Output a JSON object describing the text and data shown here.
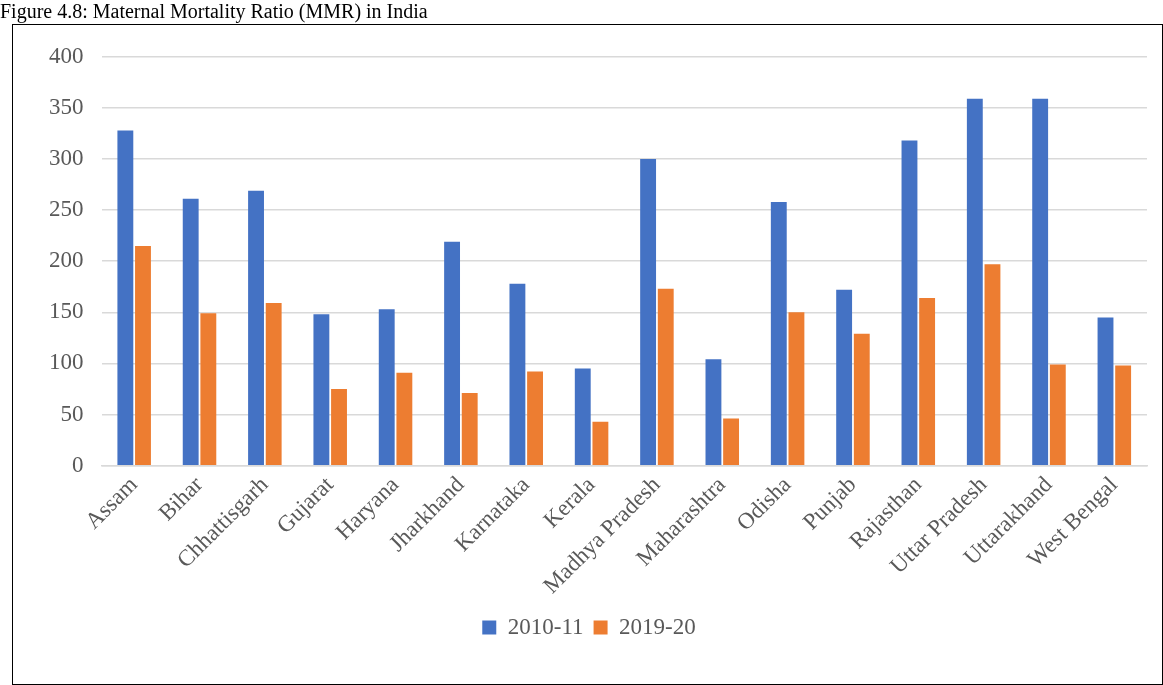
{
  "chart_data": {
    "type": "bar",
    "title": "Figure 4.8: Maternal Mortality Ratio (MMR) in India",
    "categories": [
      "Assam",
      "Bihar",
      "Chhattisgarh",
      "Gujarat",
      "Haryana",
      "Jharkhand",
      "Karnataka",
      "Kerala",
      "Madhya Pradesh",
      "Maharashtra",
      "Odisha",
      "Punjab",
      "Rajasthan",
      "Uttar Pradesh",
      "Uttarakhand",
      "West Bengal"
    ],
    "series": [
      {
        "name": "2010-11",
        "color": "#4472c4",
        "values": [
          328,
          261,
          269,
          148,
          153,
          219,
          178,
          95,
          300,
          104,
          258,
          172,
          318,
          359,
          359,
          145
        ]
      },
      {
        "name": "2019-20",
        "color": "#ed7d31",
        "values": [
          215,
          149,
          159,
          75,
          91,
          71,
          92,
          43,
          173,
          46,
          150,
          129,
          164,
          197,
          99,
          98
        ]
      }
    ],
    "ylim": [
      0,
      400
    ],
    "yticks": [
      0,
      50,
      100,
      150,
      200,
      250,
      300,
      350,
      400
    ],
    "grid": "y",
    "legend": "bottom"
  }
}
